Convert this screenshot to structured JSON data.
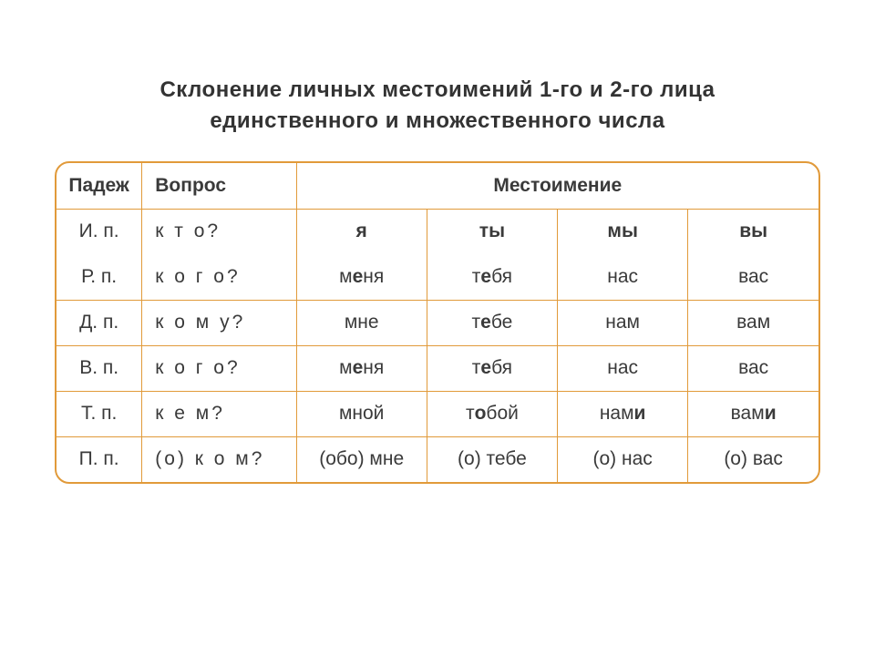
{
  "title": {
    "line1": "Склонение личных местоимений 1-го и 2-го лица",
    "line2": "единственного и множественного числа"
  },
  "headers": {
    "case": "Падеж",
    "question": "Вопрос",
    "pronoun": "Местоимение"
  },
  "columns": {
    "case_width": 94,
    "question_width": 170,
    "pronoun_width": 144
  },
  "colors": {
    "border": "#e19a3a",
    "text": "#3a3a3a",
    "background": "#ffffff"
  },
  "fonts": {
    "title_size": 24,
    "cell_size": 21,
    "family": "Arial"
  },
  "top_row": {
    "case": "И. п.",
    "question": "к т о?",
    "p1": "я",
    "p2": "ты",
    "p3": "мы",
    "p4": "вы"
  },
  "rows": [
    {
      "case": "Р. п.",
      "question": "к о г о?",
      "p1_pre": "м",
      "p1_b": "е",
      "p1_post": "ня",
      "p2_pre": "т",
      "p2_b": "е",
      "p2_post": "бя",
      "p3_pre": "нас",
      "p3_b": "",
      "p3_post": "",
      "p4_pre": "вас",
      "p4_b": "",
      "p4_post": ""
    },
    {
      "case": "Д. п.",
      "question": "к о м у?",
      "p1_pre": "мне",
      "p1_b": "",
      "p1_post": "",
      "p2_pre": "т",
      "p2_b": "е",
      "p2_post": "бе",
      "p3_pre": "нам",
      "p3_b": "",
      "p3_post": "",
      "p4_pre": "вам",
      "p4_b": "",
      "p4_post": ""
    },
    {
      "case": "В. п.",
      "question": "к о г о?",
      "p1_pre": "м",
      "p1_b": "е",
      "p1_post": "ня",
      "p2_pre": "т",
      "p2_b": "е",
      "p2_post": "бя",
      "p3_pre": "нас",
      "p3_b": "",
      "p3_post": "",
      "p4_pre": "вас",
      "p4_b": "",
      "p4_post": ""
    },
    {
      "case": "Т. п.",
      "question": "к е м?",
      "p1_pre": "мной",
      "p1_b": "",
      "p1_post": "",
      "p2_pre": "т",
      "p2_b": "о",
      "p2_post": "бой",
      "p3_pre": "нам",
      "p3_b": "и",
      "p3_post": "",
      "p4_pre": "вам",
      "p4_b": "и",
      "p4_post": ""
    },
    {
      "case": "П. п.",
      "question": "(о) к о м?",
      "p1_pre": "(обо) мне",
      "p1_b": "",
      "p1_post": "",
      "p2_pre": "(о) тебе",
      "p2_b": "",
      "p2_post": "",
      "p3_pre": "(о) нас",
      "p3_b": "",
      "p3_post": "",
      "p4_pre": "(о) вас",
      "p4_b": "",
      "p4_post": ""
    }
  ]
}
